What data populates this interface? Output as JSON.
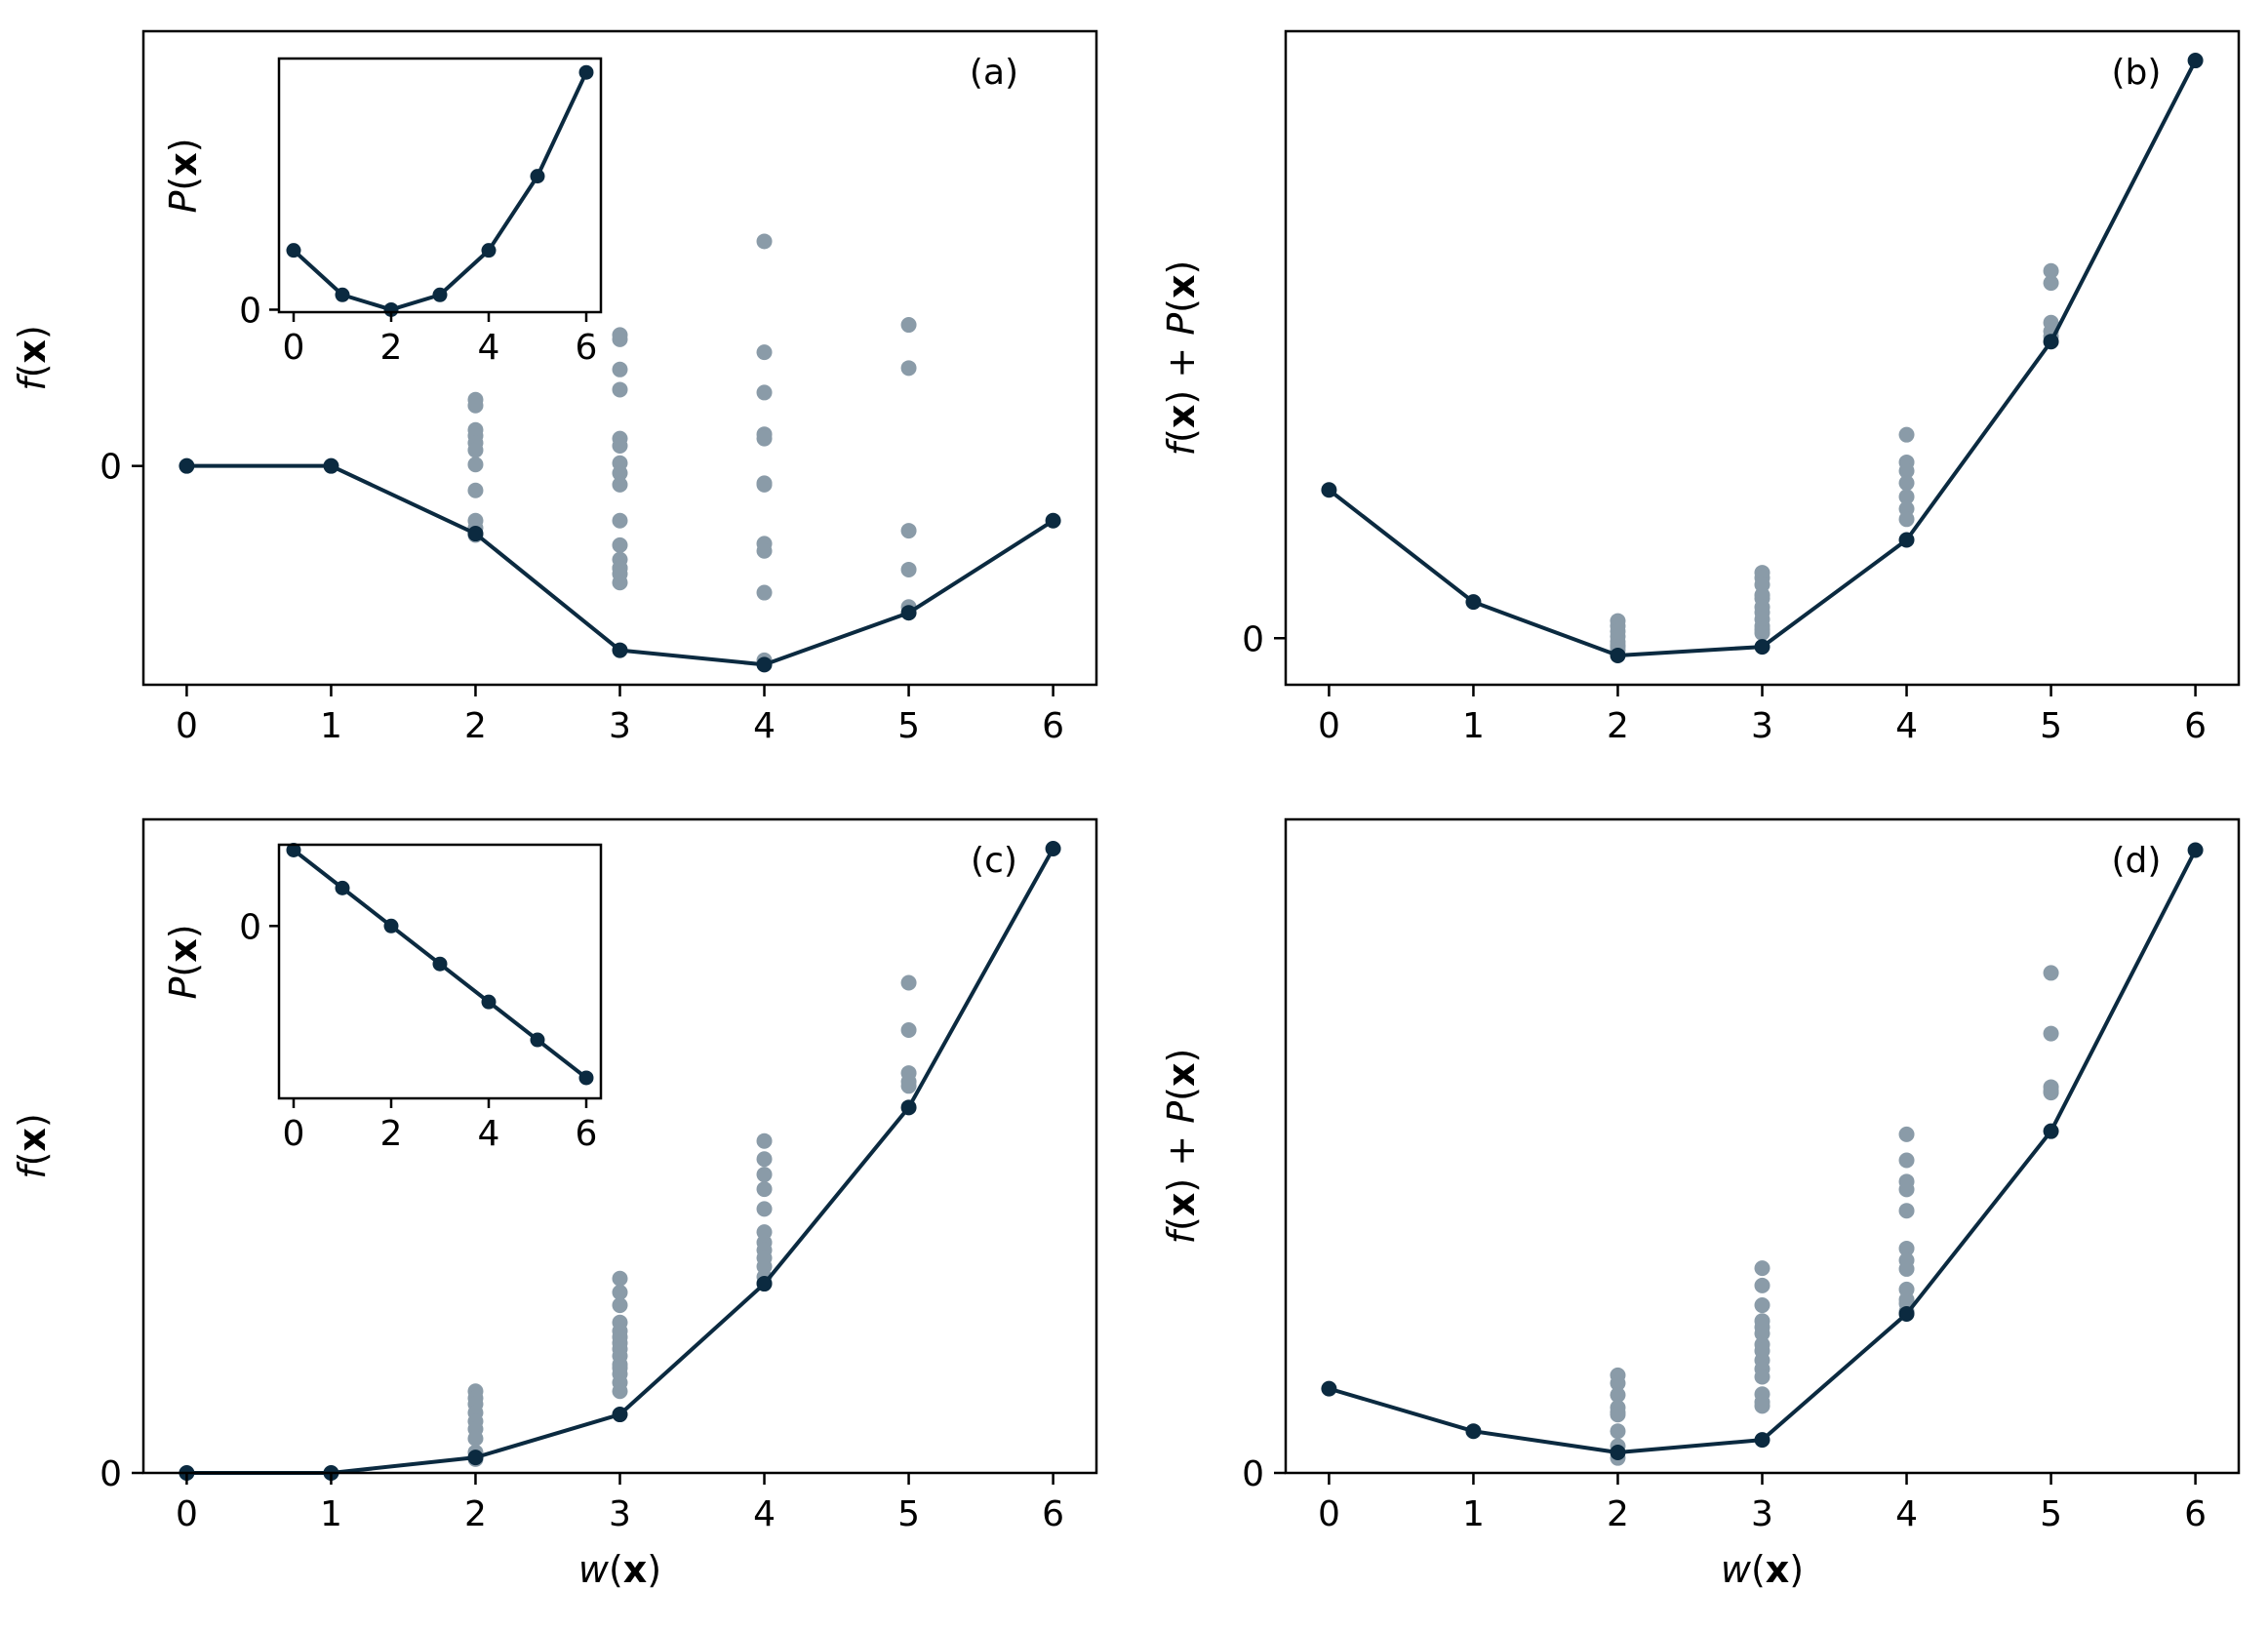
{
  "colors": {
    "line": "#0b2a40",
    "scatter": "#8a9ba8",
    "axes": "#000000",
    "background": "#ffffff"
  },
  "chart_data": [
    {
      "id": "a",
      "type": "scatter",
      "panel_label": "(a)",
      "ylabel": "f(x)",
      "xlabel": "",
      "xlim": [
        -0.3,
        6.3
      ],
      "ylim": [
        -1.52,
        3.02
      ],
      "xticks": [
        0,
        1,
        2,
        3,
        4,
        5,
        6
      ],
      "yticks": [
        0
      ],
      "line": {
        "x": [
          0,
          1,
          2,
          3,
          4,
          5,
          6
        ],
        "y": [
          0,
          0,
          -0.47,
          -1.28,
          -1.38,
          -1.02,
          -0.38
        ]
      },
      "scatter": {
        "x": [
          2,
          2,
          2,
          2,
          2,
          2,
          2,
          2,
          2,
          2,
          2,
          3,
          3,
          3,
          3,
          3,
          3,
          3,
          3,
          3,
          3,
          3,
          3,
          3,
          3,
          3,
          3,
          4,
          4,
          4,
          4,
          4,
          4,
          4,
          4,
          4,
          4,
          4,
          5,
          5,
          5,
          5,
          5
        ],
        "y": [
          0.46,
          0.42,
          0.25,
          0.21,
          0.16,
          0.11,
          0.01,
          -0.17,
          -0.38,
          -0.43,
          -0.48,
          0.91,
          0.88,
          0.67,
          0.53,
          0.19,
          0.14,
          0.02,
          -0.05,
          -0.13,
          -0.38,
          -0.55,
          -0.65,
          -0.71,
          -0.71,
          -0.75,
          -0.81,
          1.56,
          0.79,
          0.51,
          0.22,
          0.19,
          -0.12,
          -0.13,
          -0.54,
          -0.59,
          -0.88,
          -1.35,
          0.98,
          0.68,
          -0.45,
          -0.72,
          -0.98
        ]
      },
      "inset": {
        "ylabel": "P(x)",
        "xlim": [
          -0.3,
          6.3
        ],
        "ylim": [
          -0.05,
          5.08
        ],
        "xticks": [
          0,
          2,
          4,
          6
        ],
        "yticks": [
          0
        ],
        "line": {
          "x": [
            0,
            1,
            2,
            3,
            4,
            5,
            6
          ],
          "y": [
            1.2,
            0.3,
            0,
            0.3,
            1.2,
            2.7,
            4.8
          ]
        }
      }
    },
    {
      "id": "b",
      "type": "scatter",
      "panel_label": "(b)",
      "ylabel": "f(x) + P(x)",
      "xlabel": "",
      "xlim": [
        -0.3,
        6.3
      ],
      "ylim": [
        -0.27,
        3.52
      ],
      "xticks": [
        0,
        1,
        2,
        3,
        4,
        5,
        6
      ],
      "yticks": [
        0
      ],
      "line": {
        "x": [
          0,
          1,
          2,
          3,
          4,
          5,
          6
        ],
        "y": [
          0.86,
          0.21,
          -0.1,
          -0.05,
          0.57,
          1.72,
          3.35
        ]
      },
      "scatter": {
        "x": [
          2,
          2,
          2,
          2,
          2,
          2,
          2,
          2,
          3,
          3,
          3,
          3,
          3,
          3,
          3,
          3,
          3,
          3,
          3,
          4,
          4,
          4,
          4,
          4,
          4,
          4,
          5,
          5,
          5,
          5,
          5
        ],
        "y": [
          0.1,
          0.07,
          0.04,
          0.01,
          -0.02,
          -0.04,
          -0.05,
          -0.07,
          0.38,
          0.35,
          0.31,
          0.25,
          0.23,
          0.18,
          0.15,
          0.11,
          0.07,
          0.05,
          0.03,
          1.18,
          1.02,
          0.97,
          0.9,
          0.82,
          0.75,
          0.69,
          2.13,
          2.06,
          1.83,
          1.78,
          1.75
        ]
      }
    },
    {
      "id": "c",
      "type": "scatter",
      "panel_label": "(c)",
      "ylabel": "f(x)",
      "xlabel": "w(x)",
      "xlim": [
        -0.3,
        6.3
      ],
      "ylim": [
        0,
        7.6
      ],
      "xticks": [
        0,
        1,
        2,
        3,
        4,
        5,
        6
      ],
      "yticks": [
        0
      ],
      "line": {
        "x": [
          0,
          1,
          2,
          3,
          4,
          5,
          6
        ],
        "y": [
          0,
          0,
          0.18,
          0.68,
          2.2,
          4.25,
          7.26
        ]
      },
      "scatter": {
        "x": [
          2,
          2,
          2,
          2,
          2,
          2,
          2,
          2,
          2,
          3,
          3,
          3,
          3,
          3,
          3,
          3,
          3,
          3,
          3,
          3,
          3,
          3,
          3,
          4,
          4,
          4,
          4,
          4,
          4,
          4,
          4,
          4,
          4,
          4,
          4,
          5,
          5,
          5,
          5,
          5
        ],
        "y": [
          0.95,
          0.87,
          0.8,
          0.7,
          0.6,
          0.51,
          0.4,
          0.24,
          0.16,
          2.26,
          2.1,
          1.95,
          1.75,
          1.65,
          1.58,
          1.51,
          1.44,
          1.36,
          1.26,
          1.22,
          1.15,
          1.05,
          0.95,
          3.86,
          3.65,
          3.47,
          3.3,
          3.07,
          2.8,
          2.68,
          2.59,
          2.5,
          2.4,
          2.28,
          2.21,
          5.7,
          5.15,
          4.65,
          4.5,
          4.55
        ]
      },
      "inset": {
        "ylabel": "P(x)",
        "xlim": [
          -0.3,
          6.3
        ],
        "ylim": [
          -2.27,
          1.07
        ],
        "xticks": [
          0,
          2,
          4,
          6
        ],
        "yticks": [
          0
        ],
        "line": {
          "x": [
            0,
            1,
            2,
            3,
            4,
            5,
            6
          ],
          "y": [
            1,
            0.5,
            0,
            -0.5,
            -1,
            -1.5,
            -2
          ]
        }
      }
    },
    {
      "id": "d",
      "type": "scatter",
      "panel_label": "(d)",
      "ylabel": "f(x) + P(x)",
      "xlabel": "w(x)",
      "xlim": [
        -0.3,
        6.3
      ],
      "ylim": [
        0,
        8.3
      ],
      "xticks": [
        0,
        1,
        2,
        3,
        4,
        5,
        6
      ],
      "yticks": [
        0
      ],
      "line": {
        "x": [
          0,
          1,
          2,
          3,
          4,
          5,
          6
        ],
        "y": [
          1.07,
          0.53,
          0.26,
          0.42,
          2.02,
          4.34,
          7.91
        ]
      },
      "scatter": {
        "x": [
          2,
          2,
          2,
          2,
          2,
          2,
          2,
          2,
          2,
          3,
          3,
          3,
          3,
          3,
          3,
          3,
          3,
          3,
          3,
          3,
          3,
          3,
          3,
          4,
          4,
          4,
          4,
          4,
          4,
          4,
          4,
          4,
          4,
          4,
          4,
          5,
          5,
          5,
          5,
          5
        ],
        "y": [
          1.24,
          1.14,
          0.99,
          0.83,
          0.77,
          0.74,
          0.53,
          0.34,
          0.19,
          2.6,
          2.38,
          2.13,
          1.93,
          1.85,
          1.77,
          1.63,
          1.55,
          1.43,
          1.32,
          1.22,
          1.0,
          0.9,
          0.85,
          4.3,
          3.97,
          3.7,
          3.6,
          3.33,
          2.85,
          2.7,
          2.59,
          2.33,
          2.2,
          2.15,
          2.05,
          6.35,
          5.58,
          4.9,
          4.83,
          4.85
        ]
      }
    }
  ]
}
